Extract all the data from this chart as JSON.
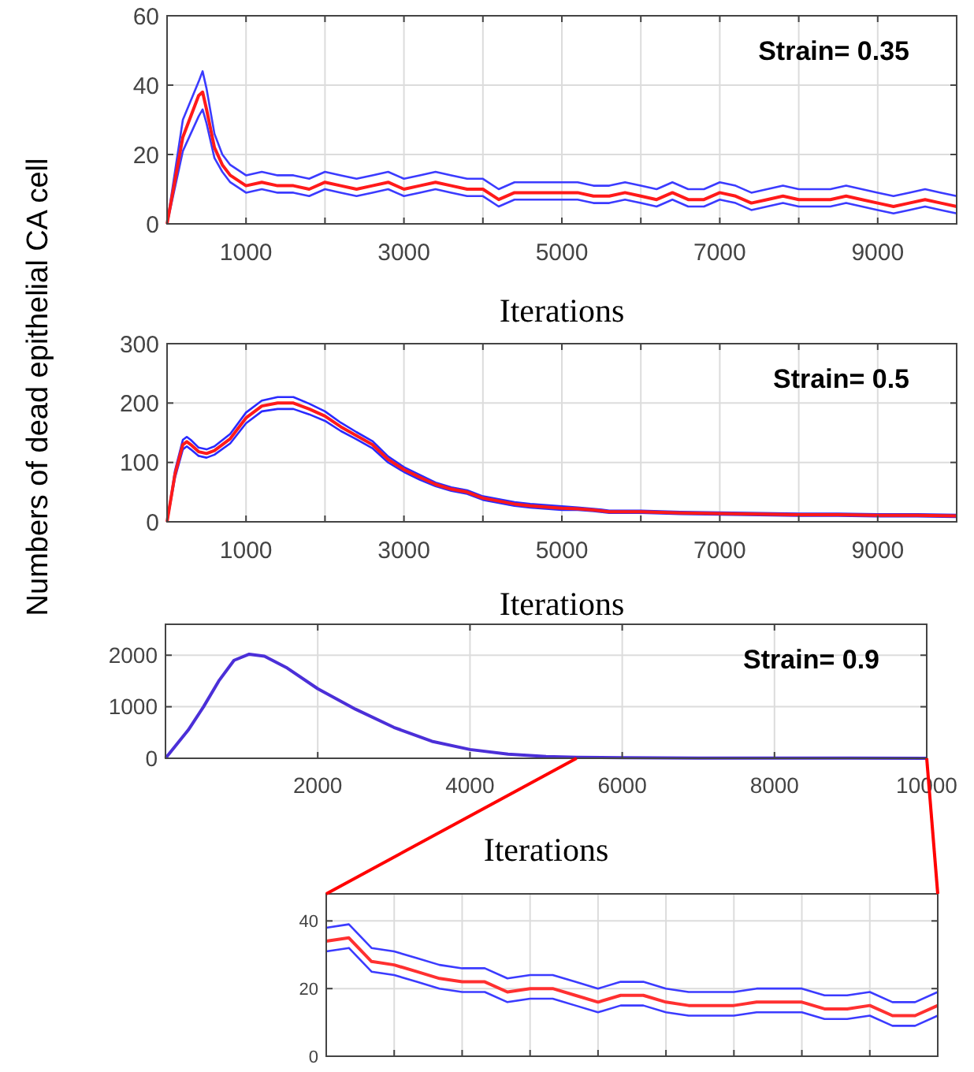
{
  "chart_data": [
    {
      "type": "line",
      "xlabel": "Iterations",
      "annotations": [
        "Strain= 0.35"
      ],
      "xlim": [
        0,
        10000
      ],
      "ylim": [
        0,
        60
      ],
      "yticks": [
        0,
        20,
        40,
        60
      ],
      "grid": true,
      "xticks": [
        1000,
        {
          "value": 2000,
          "label": null
        },
        3000,
        {
          "value": 4000,
          "label": null
        },
        5000,
        {
          "value": 6000,
          "label": null
        },
        7000,
        {
          "value": 8000,
          "label": null
        },
        9000
      ],
      "series": [
        {
          "color": "#3b3bff",
          "x": [
            0,
            200,
            400,
            450,
            500,
            600,
            700,
            800,
            1000,
            1200,
            1400,
            1600,
            1800,
            2000,
            2200,
            2400,
            2600,
            2800,
            3000,
            3200,
            3400,
            3600,
            3800,
            4000,
            4200,
            4400,
            4600,
            4800,
            5000,
            5200,
            5400,
            5600,
            5800,
            6000,
            6200,
            6400,
            6600,
            6800,
            7000,
            7200,
            7400,
            7600,
            7800,
            8000,
            8200,
            8400,
            8600,
            8800,
            9000,
            9200,
            9400,
            9600,
            9800,
            10000
          ],
          "values": [
            0,
            30,
            41,
            44,
            39,
            26,
            20,
            17,
            14,
            15,
            14,
            14,
            13,
            15,
            14,
            13,
            14,
            15,
            13,
            14,
            15,
            14,
            13,
            13,
            10,
            12,
            12,
            12,
            12,
            12,
            11,
            11,
            12,
            11,
            10,
            12,
            10,
            10,
            12,
            11,
            9,
            10,
            11,
            10,
            10,
            10,
            11,
            10,
            9,
            8,
            9,
            10,
            9,
            8
          ]
        },
        {
          "color": "#3b3bff",
          "x": [
            0,
            200,
            400,
            450,
            500,
            600,
            700,
            800,
            1000,
            1200,
            1400,
            1600,
            1800,
            2000,
            2200,
            2400,
            2600,
            2800,
            3000,
            3200,
            3400,
            3600,
            3800,
            4000,
            4200,
            4400,
            4600,
            4800,
            5000,
            5200,
            5400,
            5600,
            5800,
            6000,
            6200,
            6400,
            6600,
            6800,
            7000,
            7200,
            7400,
            7600,
            7800,
            8000,
            8200,
            8400,
            8600,
            8800,
            9000,
            9200,
            9400,
            9600,
            9800,
            10000
          ],
          "values": [
            0,
            21,
            31,
            33,
            29,
            19,
            15,
            12,
            9,
            10,
            9,
            9,
            8,
            10,
            9,
            8,
            9,
            10,
            8,
            9,
            10,
            9,
            8,
            8,
            5,
            7,
            7,
            7,
            7,
            7,
            6,
            6,
            7,
            6,
            5,
            7,
            5,
            5,
            7,
            6,
            4,
            5,
            6,
            5,
            5,
            5,
            6,
            5,
            4,
            3,
            4,
            5,
            4,
            3
          ]
        },
        {
          "color": "#ff1a1a",
          "x": [
            0,
            200,
            400,
            450,
            500,
            600,
            700,
            800,
            1000,
            1200,
            1400,
            1600,
            1800,
            2000,
            2200,
            2400,
            2600,
            2800,
            3000,
            3200,
            3400,
            3600,
            3800,
            4000,
            4200,
            4400,
            4600,
            4800,
            5000,
            5200,
            5400,
            5600,
            5800,
            6000,
            6200,
            6400,
            6600,
            6800,
            7000,
            7200,
            7400,
            7600,
            7800,
            8000,
            8200,
            8400,
            8600,
            8800,
            9000,
            9200,
            9400,
            9600,
            9800,
            10000
          ],
          "values": [
            0,
            25,
            37,
            38,
            33,
            22,
            17,
            14,
            11,
            12,
            11,
            11,
            10,
            12,
            11,
            10,
            11,
            12,
            10,
            11,
            12,
            11,
            10,
            10,
            7,
            9,
            9,
            9,
            9,
            9,
            8,
            8,
            9,
            8,
            7,
            9,
            7,
            7,
            9,
            8,
            6,
            7,
            8,
            7,
            7,
            7,
            8,
            7,
            6,
            5,
            6,
            7,
            6,
            5
          ]
        }
      ]
    },
    {
      "type": "line",
      "xlabel": "Iterations",
      "ylabel": "Numbers of dead epithelial CA cell",
      "annotations": [
        "Strain= 0.5"
      ],
      "xlim": [
        0,
        10000
      ],
      "ylim": [
        0,
        300
      ],
      "yticks": [
        0,
        100,
        200,
        300
      ],
      "grid": true,
      "xticks": [
        1000,
        {
          "value": 2000,
          "label": null
        },
        3000,
        {
          "value": 4000,
          "label": null
        },
        5000,
        {
          "value": 6000,
          "label": null
        },
        7000,
        {
          "value": 8000,
          "label": null
        },
        9000
      ],
      "series": [
        {
          "color": "#2a2aff",
          "x": [
            0,
            100,
            200,
            250,
            300,
            400,
            500,
            600,
            800,
            1000,
            1200,
            1400,
            1600,
            1800,
            2000,
            2200,
            2400,
            2600,
            2800,
            3000,
            3200,
            3400,
            3600,
            3800,
            4000,
            4200,
            4400,
            4600,
            4800,
            5000,
            5200,
            5400,
            5600,
            6000,
            6500,
            7000,
            7500,
            8000,
            8500,
            9000,
            9500,
            10000
          ],
          "values": [
            0,
            86,
            138,
            143,
            138,
            125,
            122,
            127,
            148,
            184,
            204,
            210,
            210,
            199,
            186,
            167,
            151,
            136,
            110,
            92,
            79,
            66,
            58,
            53,
            43,
            38,
            33,
            30,
            28,
            26,
            24,
            22,
            19,
            19,
            17,
            16,
            15,
            14,
            14,
            13,
            13,
            12
          ]
        },
        {
          "color": "#2a2aff",
          "x": [
            0,
            100,
            200,
            250,
            300,
            400,
            500,
            600,
            800,
            1000,
            1200,
            1400,
            1600,
            1800,
            2000,
            2200,
            2400,
            2600,
            2800,
            3000,
            3200,
            3400,
            3600,
            3800,
            4000,
            4200,
            4400,
            4600,
            4800,
            5000,
            5200,
            5400,
            5600,
            6000,
            6500,
            7000,
            7500,
            8000,
            8500,
            9000,
            9500,
            10000
          ],
          "values": [
            0,
            74,
            122,
            127,
            122,
            111,
            108,
            113,
            132,
            166,
            186,
            190,
            190,
            181,
            170,
            153,
            139,
            124,
            100,
            84,
            71,
            60,
            52,
            47,
            37,
            32,
            27,
            24,
            22,
            20,
            20,
            18,
            15,
            15,
            13,
            12,
            11,
            10,
            10,
            9,
            9,
            8
          ]
        },
        {
          "color": "#ff1a1a",
          "x": [
            0,
            100,
            200,
            250,
            300,
            400,
            500,
            600,
            800,
            1000,
            1200,
            1400,
            1600,
            1800,
            2000,
            2200,
            2400,
            2600,
            2800,
            3000,
            3200,
            3400,
            3600,
            3800,
            4000,
            4200,
            4400,
            4600,
            4800,
            5000,
            5200,
            5400,
            5600,
            6000,
            6500,
            7000,
            7500,
            8000,
            8500,
            9000,
            9500,
            10000
          ],
          "values": [
            0,
            80,
            130,
            135,
            130,
            118,
            115,
            120,
            140,
            175,
            195,
            200,
            200,
            190,
            178,
            160,
            145,
            130,
            105,
            88,
            75,
            63,
            55,
            50,
            40,
            35,
            30,
            27,
            25,
            23,
            22,
            20,
            17,
            17,
            15,
            14,
            13,
            12,
            12,
            11,
            11,
            10
          ]
        }
      ]
    },
    {
      "type": "line",
      "xlabel": "Iterations",
      "annotations": [
        "Strain= 0.9"
      ],
      "xlim": [
        0,
        10000
      ],
      "ylim": [
        0,
        2600
      ],
      "yticks": [
        0,
        1000,
        2000
      ],
      "grid": true,
      "xticks": [
        2000,
        4000,
        6000,
        8000,
        10000
      ],
      "series": [
        {
          "color": "#4b2fd8",
          "x": [
            0,
            300,
            500,
            700,
            900,
            1100,
            1300,
            1600,
            2000,
            2500,
            3000,
            3500,
            4000,
            4500,
            5000,
            5400,
            6000,
            7000,
            8000,
            9000,
            10000
          ],
          "values": [
            0,
            550,
            1000,
            1500,
            1900,
            2020,
            1980,
            1750,
            1350,
            950,
            600,
            330,
            170,
            80,
            35,
            20,
            10,
            5,
            3,
            2,
            1
          ]
        }
      ]
    },
    {
      "type": "line",
      "ylim": [
        0,
        48
      ],
      "yticks": [
        0,
        20,
        40
      ],
      "grid": true,
      "tick_labels": "y",
      "categories": [
        null,
        null,
        null,
        null,
        null,
        null,
        null,
        null,
        null,
        null,
        null,
        null,
        null,
        null,
        null,
        null,
        null,
        null,
        null,
        null,
        null,
        null,
        null,
        null,
        null,
        null,
        null,
        null
      ],
      "series": [
        {
          "color": "#3b3bff",
          "values": [
            38,
            39,
            32,
            31,
            29,
            27,
            26,
            26,
            23,
            24,
            24,
            22,
            20,
            22,
            22,
            20,
            19,
            19,
            19,
            20,
            20,
            20,
            18,
            18,
            19,
            16,
            16,
            19
          ]
        },
        {
          "color": "#3b3bff",
          "values": [
            31,
            32,
            25,
            24,
            22,
            20,
            19,
            19,
            16,
            17,
            17,
            15,
            13,
            15,
            15,
            13,
            12,
            12,
            12,
            13,
            13,
            13,
            11,
            11,
            12,
            9,
            9,
            12
          ]
        },
        {
          "color": "#ff3030",
          "values": [
            34,
            35,
            28,
            27,
            25,
            23,
            22,
            22,
            19,
            20,
            20,
            18,
            16,
            18,
            18,
            16,
            15,
            15,
            15,
            16,
            16,
            16,
            14,
            14,
            15,
            12,
            12,
            15
          ]
        }
      ]
    }
  ]
}
